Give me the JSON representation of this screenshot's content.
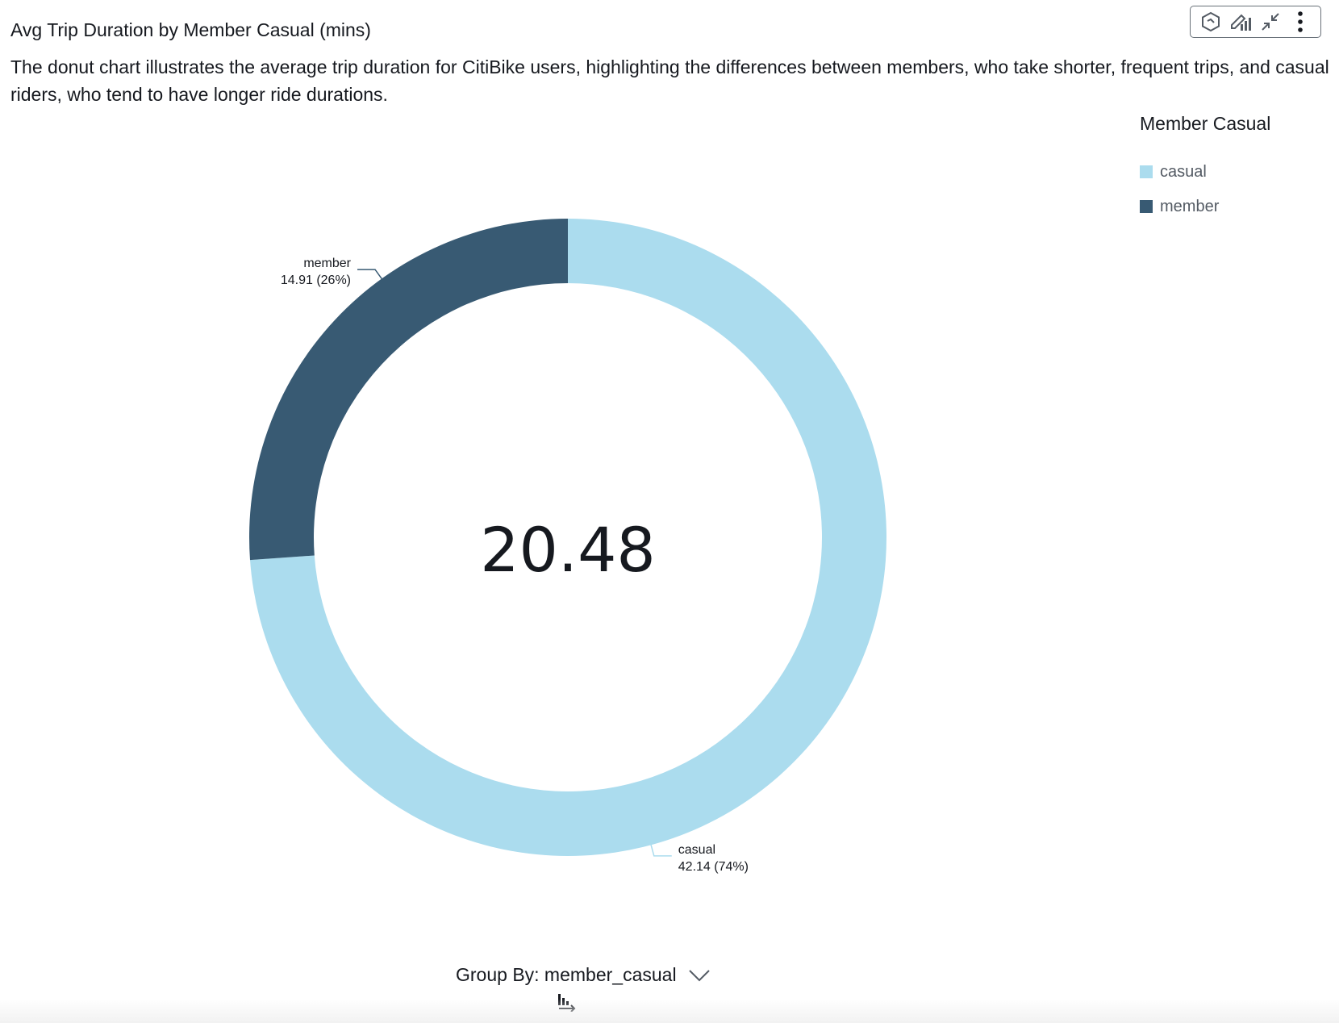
{
  "visual": {
    "title": "Avg Trip Duration by Member Casual (mins)",
    "subtitle": "The donut chart illustrates the average trip duration for CitiBike users, highlighting the differences between members, who take shorter, frequent trips, and casual riders, who tend to have longer ride durations."
  },
  "toolbar": {
    "icons": [
      "insight-hexagon-icon",
      "edit-chart-icon",
      "collapse-icon",
      "more-options-icon"
    ]
  },
  "legend": {
    "title": "Member Casual",
    "items": [
      {
        "label": "casual",
        "color": "#abdcee"
      },
      {
        "label": "member",
        "color": "#385a73"
      }
    ]
  },
  "chart_data": {
    "type": "pie",
    "donut": true,
    "center_value": "20.48",
    "legend_position": "top-right",
    "series": [
      {
        "name": "casual",
        "value": 42.14,
        "percent": 74,
        "label": "42.14 (74%)",
        "color": "#abdcee"
      },
      {
        "name": "member",
        "value": 14.91,
        "percent": 26,
        "label": "14.91 (26%)",
        "color": "#385a73"
      }
    ]
  },
  "footer": {
    "group_by_label": "Group By: member_casual"
  }
}
